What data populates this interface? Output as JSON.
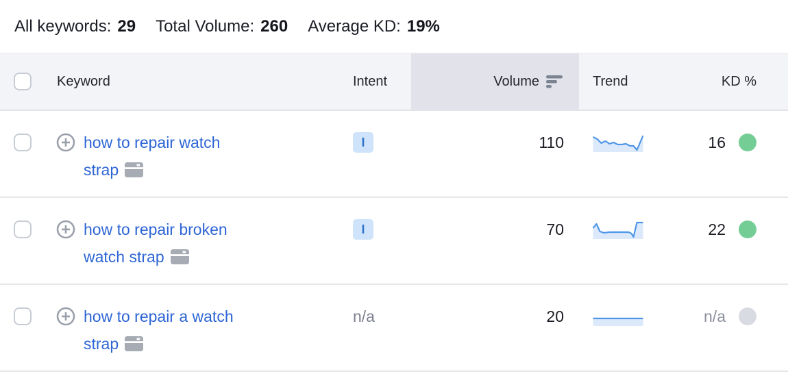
{
  "stats": {
    "items": [
      {
        "label": "All keywords:",
        "value": "29"
      },
      {
        "label": "Total Volume:",
        "value": "260"
      },
      {
        "label": "Average KD:",
        "value": "19%"
      }
    ]
  },
  "table": {
    "headers": {
      "keyword": "Keyword",
      "intent": "Intent",
      "volume": "Volume",
      "trend": "Trend",
      "kd": "KD %"
    },
    "sorted_column": "volume",
    "sort_direction": "descending",
    "rows": [
      {
        "keyword": "how to repair watch strap",
        "intent": "I",
        "volume": "110",
        "kd": "16",
        "kd_level": "easy",
        "trend_points": [
          [
            0,
            5
          ],
          [
            6,
            8
          ],
          [
            12,
            14
          ],
          [
            18,
            11
          ],
          [
            24,
            15
          ],
          [
            30,
            13
          ],
          [
            36,
            16
          ],
          [
            42,
            16
          ],
          [
            48,
            15
          ],
          [
            54,
            18
          ],
          [
            59,
            18
          ],
          [
            64,
            24
          ],
          [
            73,
            3
          ]
        ]
      },
      {
        "keyword": "how to repair broken watch strap",
        "intent": "I",
        "volume": "70",
        "kd": "22",
        "kd_level": "easy",
        "trend_points": [
          [
            0,
            11
          ],
          [
            5,
            5
          ],
          [
            10,
            16
          ],
          [
            16,
            18
          ],
          [
            24,
            17
          ],
          [
            34,
            17
          ],
          [
            44,
            17
          ],
          [
            52,
            17
          ],
          [
            56,
            19
          ],
          [
            59,
            24
          ],
          [
            64,
            3
          ],
          [
            73,
            3
          ]
        ]
      },
      {
        "keyword": "how to repair a watch strap",
        "intent": "n/a",
        "volume": "20",
        "kd": "n/a",
        "kd_level": "na",
        "trend_points": [
          [
            0,
            16
          ],
          [
            73,
            16
          ]
        ]
      }
    ]
  },
  "icons": {
    "plus": "add-keyword-icon",
    "serp": "serp-features-icon",
    "sort": "sort-descending-icon"
  },
  "colors": {
    "link_blue": "#2d65d4",
    "intent_badge_bg": "#cfe4fa",
    "intent_badge_text": "#3274cd",
    "kd_easy_dot": "#75cd96",
    "kd_na_dot": "#d9dbe2",
    "spark_line": "#4f97e8",
    "spark_fill": "#dbe9fb",
    "header_bg": "#f3f4f7",
    "sorted_col_bg": "#e2e2ea"
  }
}
